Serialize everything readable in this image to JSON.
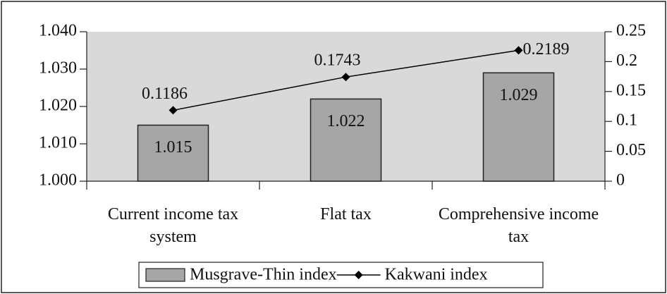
{
  "chart_data": {
    "type": "bar",
    "categories": [
      "Current income tax system",
      "Flat tax",
      "Comprehensive income tax"
    ],
    "series": [
      {
        "name": "Musgrave-Thin index",
        "type": "bar",
        "color": "#a6a6a6",
        "values": [
          1.015,
          1.022,
          1.029
        ]
      },
      {
        "name": "Kakwani index",
        "type": "line",
        "axis": "y2",
        "color": "#000000",
        "values": [
          0.1186,
          0.1743,
          0.2189
        ]
      }
    ],
    "ylim": [
      1.0,
      1.04
    ],
    "yticks": [
      {
        "value": 1.0,
        "label": "1.000"
      },
      {
        "value": 1.01,
        "label": "1.010"
      },
      {
        "value": 1.02,
        "label": "1.020"
      },
      {
        "value": 1.03,
        "label": "1.030"
      },
      {
        "value": 1.04,
        "label": "1.040"
      }
    ],
    "y2lim": [
      0,
      0.25
    ],
    "y2ticks": [
      0,
      0.05,
      0.1,
      0.15,
      0.2,
      0.25
    ],
    "plot_background": "#d9d9d9",
    "legend": "bottom"
  }
}
